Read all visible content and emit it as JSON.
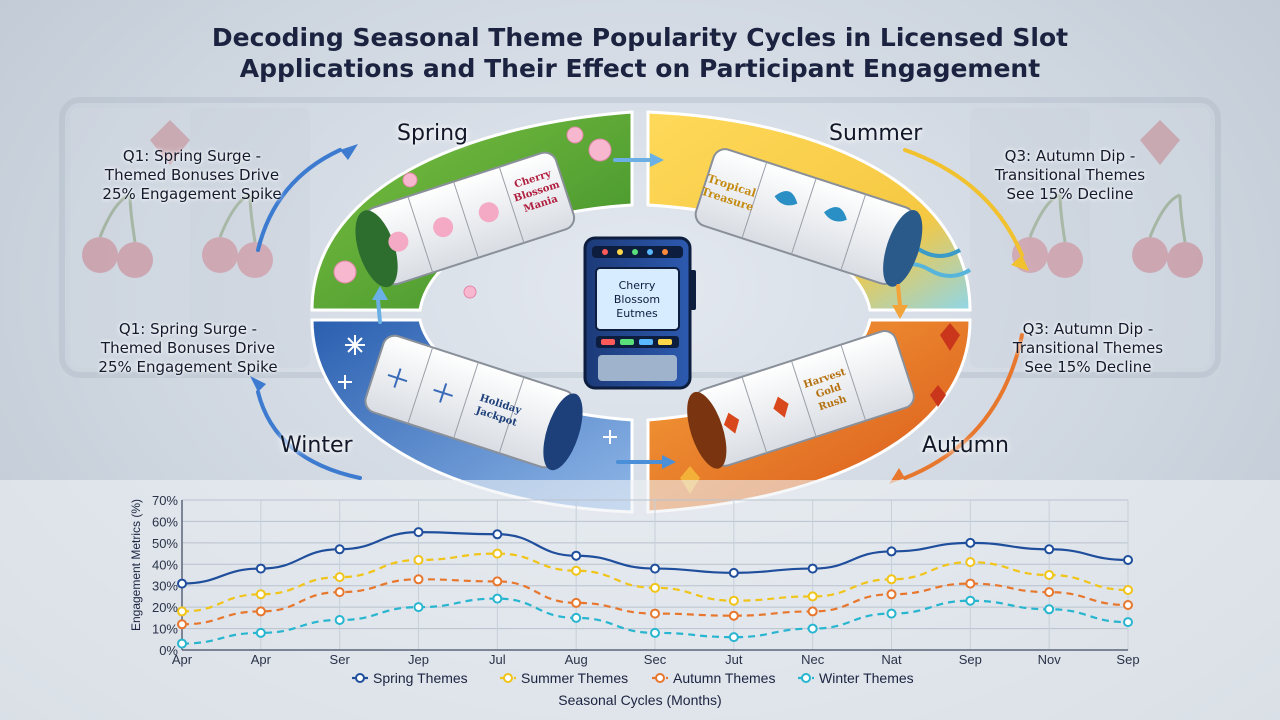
{
  "page": {
    "title_line1": "Decoding Seasonal Theme Popularity Cycles in Licensed Slot",
    "title_line2": "Applications and Their Effect on Participant Engagement"
  },
  "notes": [
    {
      "text_lines": [
        "Q1: Spring Surge -",
        "Themed Bonuses Drive",
        "25% Engagement Spike"
      ]
    },
    {
      "text_lines": [
        "Q3: Autumn Dip -",
        "Transitional Themes",
        "See 15% Decline"
      ]
    },
    {
      "text_lines": [
        "Q1: Spring Surge -",
        "Themed Bonuses Drive",
        "25% Engagement Spike"
      ]
    },
    {
      "text_lines": [
        "Q3: Autumn Dip -",
        "Transitional Themes",
        "See 15% Decline"
      ]
    }
  ],
  "seasons": {
    "spring": "Spring",
    "summer": "Summer",
    "autumn": "Autumn",
    "winter": "Winter"
  },
  "machine": {
    "screen_lines": [
      "Cherry",
      "Blossom",
      "Eutmes"
    ]
  },
  "reels": {
    "spring_label_lines": [
      "Cherry",
      "Blossom",
      "Mania"
    ],
    "summer_label_lines": [
      "Tropical",
      "Treasure"
    ],
    "autumn_label_lines": [
      "Harvest",
      "Gold",
      "Rush"
    ],
    "winter_label_lines": [
      "Holiday",
      "Jackpot"
    ]
  },
  "colors": {
    "spring": "#1f4e9c",
    "summer": "#f0c419",
    "autumn": "#e8772e",
    "winter": "#27b5cf",
    "spring_panel": "#5cae3a",
    "summer_panel": "#f6c945",
    "autumn_panel": "#ef8a22",
    "winter_panel": "#2f67b8"
  },
  "chart_data": {
    "type": "line",
    "categories": [
      "Apr",
      "Apr",
      "Ser",
      "Jep",
      "Jul",
      "Aug",
      "Sec",
      "Jut",
      "Nec",
      "Nat",
      "Sep",
      "Nov",
      "Sep"
    ],
    "ylim": [
      0,
      70
    ],
    "y_ticks": [
      "0%",
      "10%",
      "20%",
      "30%",
      "40%",
      "50%",
      "60%",
      "70%"
    ],
    "ylabel": "Engagement Metrics (%)",
    "xlabel": "Seasonal Cycles (Months)",
    "grid": true,
    "legend_position": "bottom",
    "series": [
      {
        "name": "Spring Themes",
        "values": [
          31,
          38,
          47,
          55,
          54,
          44,
          38,
          36,
          38,
          46,
          50,
          47,
          42
        ]
      },
      {
        "name": "Summer Themes",
        "values": [
          18,
          26,
          34,
          42,
          45,
          37,
          29,
          23,
          25,
          33,
          41,
          35,
          28
        ]
      },
      {
        "name": "Autumn Themes",
        "values": [
          12,
          18,
          27,
          33,
          32,
          22,
          17,
          16,
          18,
          26,
          31,
          27,
          21
        ]
      },
      {
        "name": "Winter Themes",
        "values": [
          3,
          8,
          14,
          20,
          24,
          15,
          8,
          6,
          10,
          17,
          23,
          19,
          13
        ]
      }
    ]
  }
}
